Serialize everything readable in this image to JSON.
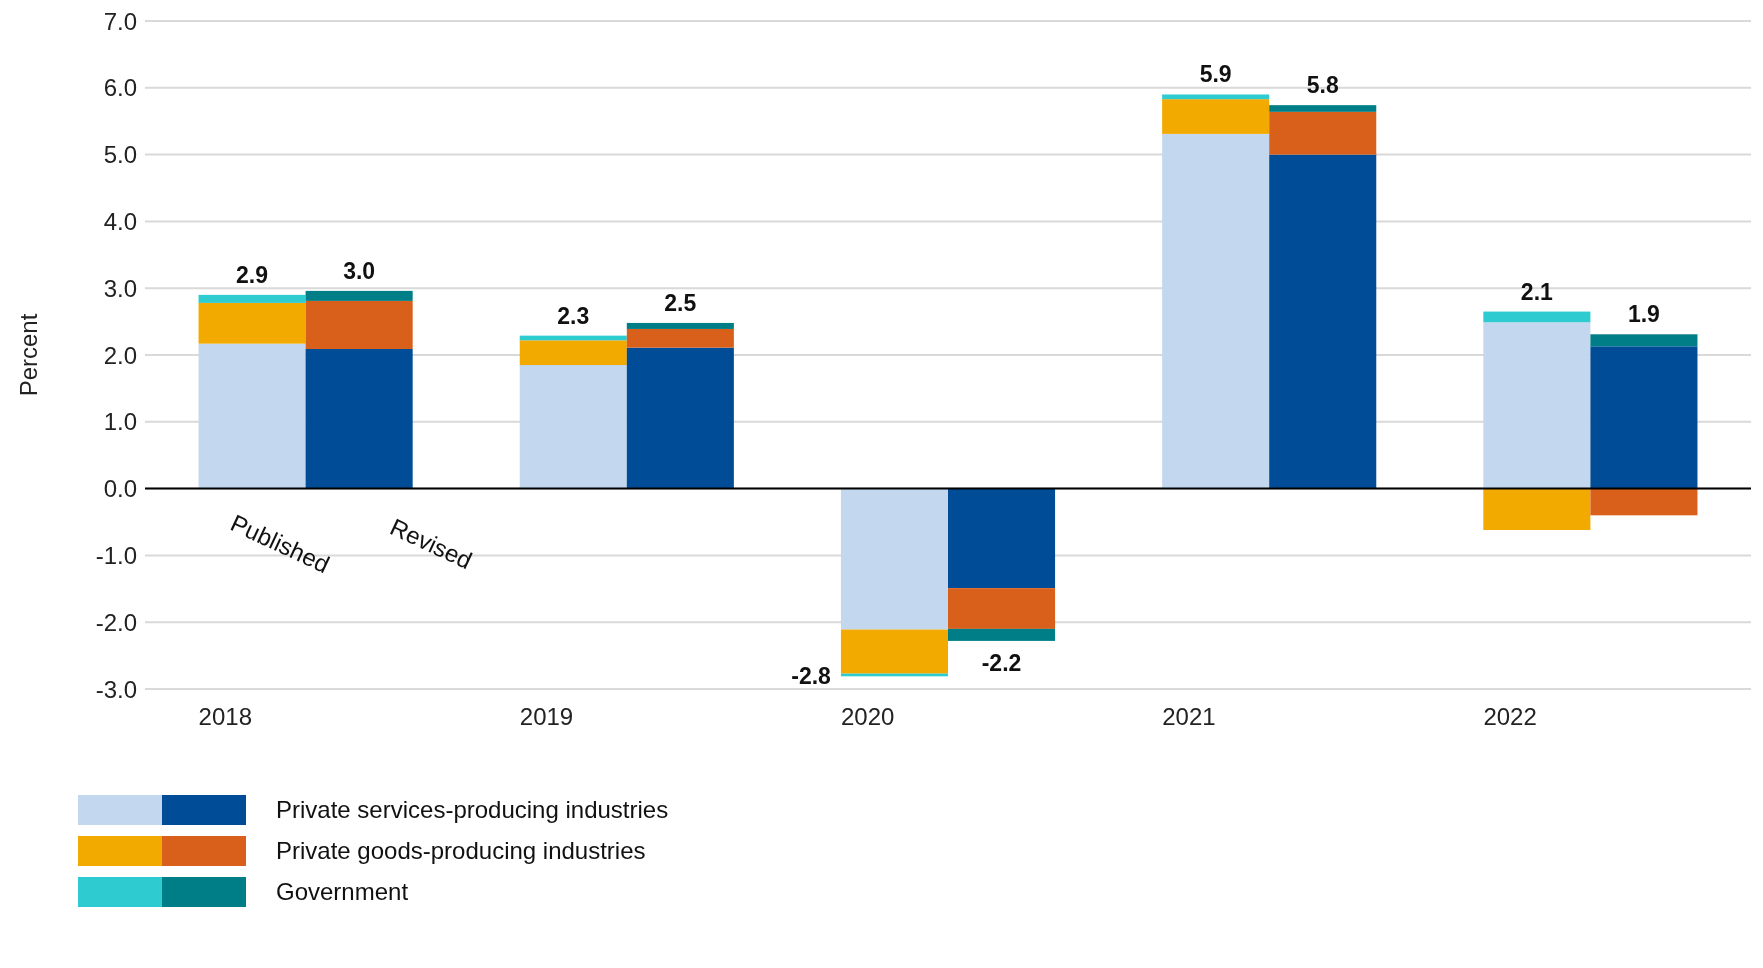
{
  "chart_data": {
    "type": "bar",
    "stacked": true,
    "ylabel": "Percent",
    "categories": [
      "2018",
      null,
      "2019",
      null,
      "2020",
      null,
      "2021",
      null,
      "2022",
      null
    ],
    "series": [
      {
        "color": "#c3d7ee",
        "values": [
          2.17,
          null,
          1.85,
          null,
          -2.11,
          null,
          5.31,
          null,
          2.49,
          null
        ]
      },
      {
        "color": "#f2aa00",
        "values": [
          0.61,
          null,
          0.37,
          null,
          -0.66,
          null,
          0.52,
          null,
          -0.62,
          null
        ]
      },
      {
        "color": "#2ecbd1",
        "values": [
          0.12,
          null,
          0.07,
          null,
          -0.04,
          null,
          0.07,
          null,
          0.16,
          null
        ]
      },
      {
        "name": "Private services-producing industries",
        "color": "#004c97",
        "values": [
          null,
          2.09,
          null,
          2.11,
          null,
          -1.49,
          null,
          5.0,
          null,
          2.13
        ]
      },
      {
        "name": "Private goods-producing industries",
        "color": "#d9601a",
        "values": [
          null,
          0.72,
          null,
          0.28,
          null,
          -0.61,
          null,
          0.64,
          null,
          -0.4
        ]
      },
      {
        "name": "Government",
        "color": "#007e87",
        "values": [
          null,
          0.15,
          null,
          0.09,
          null,
          -0.18,
          null,
          0.1,
          null,
          0.18
        ]
      }
    ],
    "totals": [
      "2.9",
      "3.0",
      "2.3",
      "2.5",
      "-2.8",
      "-2.2",
      "5.9",
      "5.8",
      "2.1",
      "1.9"
    ],
    "ylim": [
      -3,
      7
    ],
    "yticks": [
      {
        "value": -3,
        "label": "-3.0"
      },
      {
        "value": -2,
        "label": "-2.0"
      },
      {
        "value": -1,
        "label": "-1.0"
      },
      {
        "value": 0,
        "label": "0.0"
      },
      {
        "value": 1,
        "label": "1.0"
      },
      {
        "value": 2,
        "label": "2.0"
      },
      {
        "value": 3,
        "label": "3.0"
      },
      {
        "value": 4,
        "label": "4.0"
      },
      {
        "value": 5,
        "label": "5.0"
      },
      {
        "value": 6,
        "label": "6.0"
      },
      {
        "value": 7,
        "label": "7.0"
      }
    ],
    "grid": "y",
    "ref_lines": [
      {
        "axis": "y",
        "value": 0,
        "color": "#000000"
      }
    ],
    "annotations": [
      "Published",
      "Revised"
    ],
    "legend": "bottom left"
  }
}
